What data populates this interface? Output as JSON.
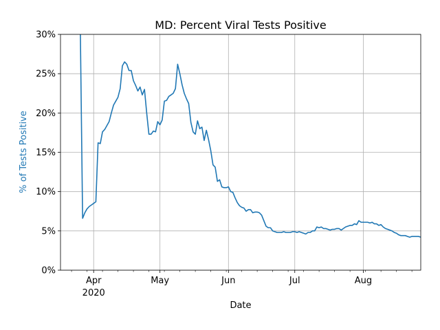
{
  "chart_data": {
    "type": "line",
    "title": "MD: Percent Viral Tests Positive",
    "xlabel": "Date",
    "ylabel": "% of Tests Positive",
    "ylabel_color": "#1f77b4",
    "line_color": "#1f77b4",
    "grid": true,
    "legend": "none",
    "xlim": [
      "2020-03-17",
      "2020-08-27"
    ],
    "ylim": [
      0,
      30
    ],
    "x_ticks": [
      {
        "date": "2020-04-01",
        "label": "Apr",
        "sublabel": "2020"
      },
      {
        "date": "2020-05-01",
        "label": "May",
        "sublabel": ""
      },
      {
        "date": "2020-06-01",
        "label": "Jun",
        "sublabel": ""
      },
      {
        "date": "2020-07-01",
        "label": "Jul",
        "sublabel": ""
      },
      {
        "date": "2020-08-01",
        "label": "Aug",
        "sublabel": ""
      }
    ],
    "y_ticks": [
      {
        "value": 0,
        "label": "0%"
      },
      {
        "value": 5,
        "label": "5%"
      },
      {
        "value": 10,
        "label": "10%"
      },
      {
        "value": 15,
        "label": "15%"
      },
      {
        "value": 20,
        "label": "20%"
      },
      {
        "value": 25,
        "label": "25%"
      },
      {
        "value": 30,
        "label": "30%"
      }
    ],
    "series": [
      {
        "x": [
          "2020-03-26",
          "2020-03-27",
          "2020-03-28",
          "2020-03-29",
          "2020-03-30",
          "2020-03-31",
          "2020-04-01",
          "2020-04-02",
          "2020-04-03",
          "2020-04-04",
          "2020-04-05",
          "2020-04-06",
          "2020-04-07",
          "2020-04-08",
          "2020-04-09",
          "2020-04-10",
          "2020-04-11",
          "2020-04-12",
          "2020-04-13",
          "2020-04-14",
          "2020-04-15",
          "2020-04-16",
          "2020-04-17",
          "2020-04-18",
          "2020-04-19",
          "2020-04-20",
          "2020-04-21",
          "2020-04-22",
          "2020-04-23",
          "2020-04-24",
          "2020-04-25",
          "2020-04-26",
          "2020-04-27",
          "2020-04-28",
          "2020-04-29",
          "2020-04-30",
          "2020-05-01",
          "2020-05-02",
          "2020-05-03",
          "2020-05-04",
          "2020-05-05",
          "2020-05-06",
          "2020-05-07",
          "2020-05-08",
          "2020-05-09",
          "2020-05-10",
          "2020-05-11",
          "2020-05-12",
          "2020-05-13",
          "2020-05-14",
          "2020-05-15",
          "2020-05-16",
          "2020-05-17",
          "2020-05-18",
          "2020-05-19",
          "2020-05-20",
          "2020-05-21",
          "2020-05-22",
          "2020-05-23",
          "2020-05-24",
          "2020-05-25",
          "2020-05-26",
          "2020-05-27",
          "2020-05-28",
          "2020-05-29",
          "2020-05-30",
          "2020-05-31",
          "2020-06-01",
          "2020-06-02",
          "2020-06-03",
          "2020-06-04",
          "2020-06-05",
          "2020-06-06",
          "2020-06-07",
          "2020-06-08",
          "2020-06-09",
          "2020-06-10",
          "2020-06-11",
          "2020-06-12",
          "2020-06-13",
          "2020-06-14",
          "2020-06-15",
          "2020-06-16",
          "2020-06-17",
          "2020-06-18",
          "2020-06-19",
          "2020-06-20",
          "2020-06-21",
          "2020-06-22",
          "2020-06-23",
          "2020-06-24",
          "2020-06-25",
          "2020-06-26",
          "2020-06-27",
          "2020-06-28",
          "2020-06-29",
          "2020-06-30",
          "2020-07-01",
          "2020-07-02",
          "2020-07-03",
          "2020-07-04",
          "2020-07-05",
          "2020-07-06",
          "2020-07-07",
          "2020-07-08",
          "2020-07-09",
          "2020-07-10",
          "2020-07-11",
          "2020-07-12",
          "2020-07-13",
          "2020-07-14",
          "2020-07-15",
          "2020-07-16",
          "2020-07-17",
          "2020-07-18",
          "2020-07-19",
          "2020-07-20",
          "2020-07-21",
          "2020-07-22",
          "2020-07-23",
          "2020-07-24",
          "2020-07-25",
          "2020-07-26",
          "2020-07-27",
          "2020-07-28",
          "2020-07-29",
          "2020-07-30",
          "2020-07-31",
          "2020-08-01",
          "2020-08-02",
          "2020-08-03",
          "2020-08-04",
          "2020-08-05",
          "2020-08-06",
          "2020-08-07",
          "2020-08-08",
          "2020-08-09",
          "2020-08-10",
          "2020-08-11",
          "2020-08-12",
          "2020-08-13",
          "2020-08-14",
          "2020-08-15",
          "2020-08-16",
          "2020-08-17",
          "2020-08-18",
          "2020-08-19",
          "2020-08-20",
          "2020-08-21",
          "2020-08-22",
          "2020-08-23",
          "2020-08-24",
          "2020-08-25",
          "2020-08-26",
          "2020-08-27"
        ],
        "y": [
          30.0,
          6.6,
          7.3,
          7.8,
          8.1,
          8.3,
          8.5,
          8.7,
          16.2,
          16.1,
          17.6,
          17.9,
          18.4,
          18.9,
          20.0,
          21.0,
          21.5,
          22.0,
          23.1,
          26.0,
          26.5,
          26.2,
          25.4,
          25.4,
          24.1,
          23.5,
          22.8,
          23.3,
          22.3,
          23.0,
          20.0,
          17.3,
          17.3,
          17.7,
          17.6,
          18.9,
          18.5,
          19.1,
          21.5,
          21.6,
          22.1,
          22.3,
          22.5,
          23.1,
          26.2,
          25.0,
          23.6,
          22.5,
          21.8,
          21.2,
          18.8,
          17.6,
          17.3,
          19.0,
          18.0,
          18.2,
          16.5,
          17.8,
          16.6,
          15.2,
          13.4,
          13.1,
          11.3,
          11.5,
          10.6,
          10.5,
          10.5,
          10.6,
          10.0,
          9.9,
          9.2,
          8.6,
          8.2,
          8.0,
          7.9,
          7.5,
          7.7,
          7.7,
          7.3,
          7.4,
          7.4,
          7.3,
          7.0,
          6.3,
          5.6,
          5.4,
          5.4,
          5.0,
          4.9,
          4.8,
          4.8,
          4.8,
          4.9,
          4.8,
          4.8,
          4.8,
          4.9,
          4.9,
          4.8,
          4.9,
          4.8,
          4.7,
          4.6,
          4.8,
          4.8,
          5.0,
          5.0,
          5.5,
          5.4,
          5.5,
          5.3,
          5.3,
          5.2,
          5.1,
          5.2,
          5.2,
          5.3,
          5.3,
          5.1,
          5.3,
          5.5,
          5.6,
          5.7,
          5.7,
          5.9,
          5.8,
          6.3,
          6.1,
          6.1,
          6.1,
          6.1,
          6.0,
          6.1,
          5.9,
          5.9,
          5.7,
          5.8,
          5.5,
          5.3,
          5.2,
          5.1,
          5.0,
          4.8,
          4.7,
          4.5,
          4.4,
          4.4,
          4.4,
          4.3,
          4.2,
          4.3,
          4.3,
          4.3,
          4.3,
          4.2
        ]
      }
    ]
  }
}
